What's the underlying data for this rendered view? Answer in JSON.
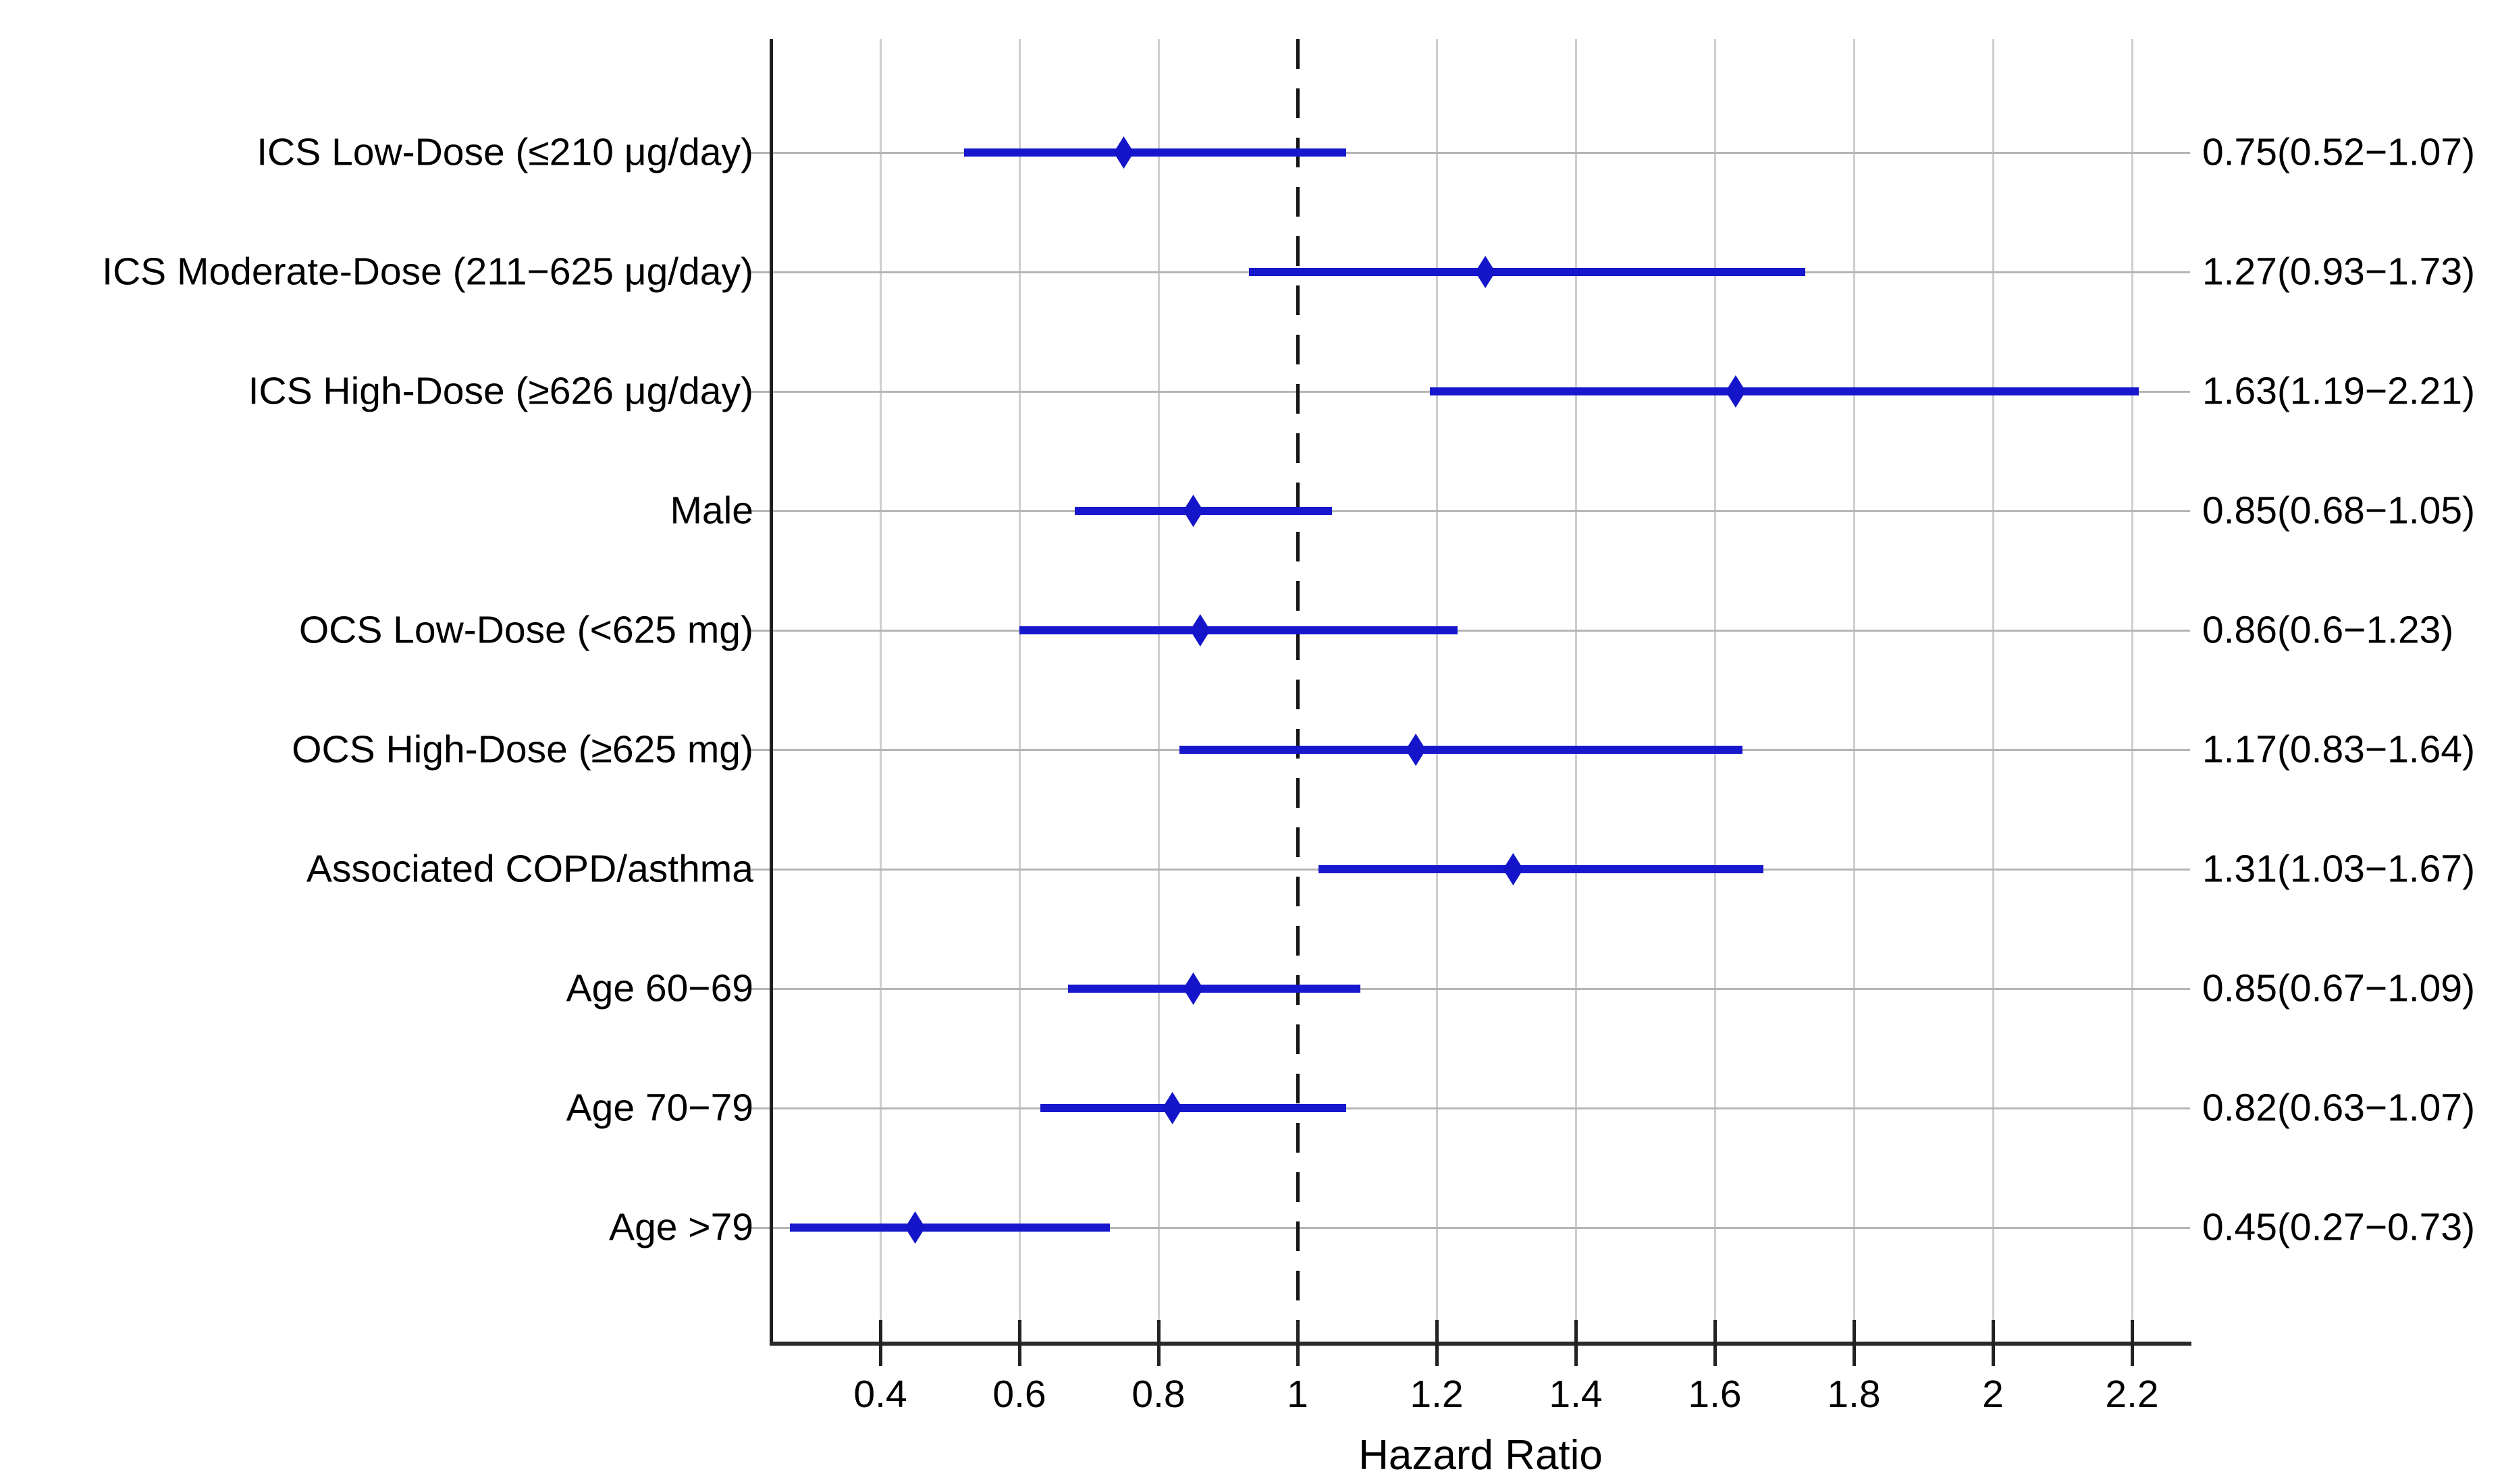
{
  "chart_data": {
    "type": "scatter",
    "variant": "forest-plot",
    "title": "",
    "xlabel": "Hazard Ratio",
    "ylabel": "",
    "xlim": [
      0.24,
      2.26
    ],
    "grid": true,
    "reference_line_x": 1,
    "x_ticks": [
      {
        "value": 0.4,
        "label": "0.4"
      },
      {
        "value": 0.6,
        "label": "0.6"
      },
      {
        "value": 0.8,
        "label": "0.8"
      },
      {
        "value": 1.0,
        "label": "1"
      },
      {
        "value": 1.2,
        "label": "1.2"
      },
      {
        "value": 1.4,
        "label": "1.4"
      },
      {
        "value": 1.6,
        "label": "1.6"
      },
      {
        "value": 1.8,
        "label": "1.8"
      },
      {
        "value": 2.0,
        "label": "2"
      },
      {
        "value": 2.2,
        "label": "2.2"
      }
    ],
    "rows": [
      {
        "label": "ICS Low-Dose (≤210 μg/day)",
        "hr": 0.75,
        "ci_low": 0.52,
        "ci_high": 1.07,
        "value_text": "0.75(0.52−1.07)"
      },
      {
        "label": "ICS Moderate-Dose (211−625 μg/day)",
        "hr": 1.27,
        "ci_low": 0.93,
        "ci_high": 1.73,
        "value_text": "1.27(0.93−1.73)"
      },
      {
        "label": "ICS High-Dose (≥626 μg/day)",
        "hr": 1.63,
        "ci_low": 1.19,
        "ci_high": 2.21,
        "value_text": "1.63(1.19−2.21)"
      },
      {
        "label": "Male",
        "hr": 0.85,
        "ci_low": 0.68,
        "ci_high": 1.05,
        "value_text": "0.85(0.68−1.05)"
      },
      {
        "label": "OCS Low-Dose (<625 mg)",
        "hr": 0.86,
        "ci_low": 0.6,
        "ci_high": 1.23,
        "value_text": "0.86(0.6−1.23)"
      },
      {
        "label": "OCS High-Dose (≥625 mg)",
        "hr": 1.17,
        "ci_low": 0.83,
        "ci_high": 1.64,
        "value_text": "1.17(0.83−1.64)"
      },
      {
        "label": "Associated COPD/asthma",
        "hr": 1.31,
        "ci_low": 1.03,
        "ci_high": 1.67,
        "value_text": "1.31(1.03−1.67)"
      },
      {
        "label": "Age 60−69",
        "hr": 0.85,
        "ci_low": 0.67,
        "ci_high": 1.09,
        "value_text": "0.85(0.67−1.09)"
      },
      {
        "label": "Age 70−79",
        "hr": 0.82,
        "ci_low": 0.63,
        "ci_high": 1.07,
        "value_text": "0.82(0.63−1.07)"
      },
      {
        "label": "Age >79",
        "hr": 0.45,
        "ci_low": 0.27,
        "ci_high": 0.73,
        "value_text": "0.45(0.27−0.73)"
      }
    ],
    "colors": {
      "marker": "#1414c8",
      "ci_bar": "#1717cd",
      "reference_line": "#141414",
      "axis": "#1f1f1f",
      "gridline_h": "#b5b5b5",
      "gridline_v": "#cecece"
    },
    "legend": null
  }
}
